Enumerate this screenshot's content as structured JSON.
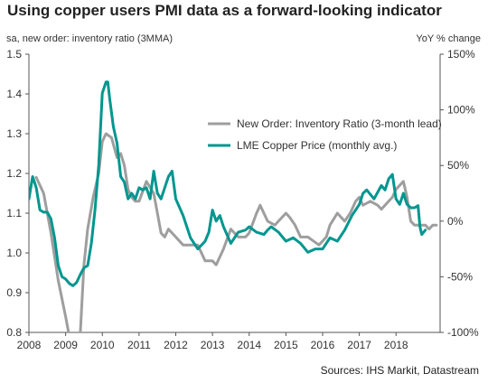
{
  "chart_data": {
    "type": "line",
    "title": "Using copper users PMI data as a forward-looking indicator",
    "y_left_label": "sa, new order: inventory ratio (3MMA)",
    "y_right_label": "YoY % change",
    "source": "Sources: IHS Markit, Datastream",
    "x_ticks": [
      "2008",
      "2009",
      "2010",
      "2011",
      "2012",
      "2013",
      "2014",
      "2015",
      "2016",
      "2017",
      "2018"
    ],
    "xlim": [
      2008.0,
      2019.2
    ],
    "y_left_ticks": [
      "0.8",
      "0.9",
      "1.0",
      "1.1",
      "1.2",
      "1.3",
      "1.4",
      "1.5"
    ],
    "ylim_left": [
      0.8,
      1.5
    ],
    "y_right_ticks": [
      "-100%",
      "-50%",
      "0%",
      "50%",
      "100%",
      "150%"
    ],
    "ylim_right": [
      -100,
      150
    ],
    "grid": false,
    "legend_position": "top-right",
    "series": [
      {
        "name": "New Order: Inventory Ratio (3-month lead)",
        "axis": "left",
        "color": "#9e9e9e",
        "x": [
          2008.2,
          2008.4,
          2008.6,
          2008.8,
          2009.0,
          2009.1,
          2009.25,
          2009.4,
          2009.5,
          2009.6,
          2009.75,
          2009.9,
          2010.0,
          2010.1,
          2010.25,
          2010.4,
          2010.5,
          2010.6,
          2010.7,
          2010.8,
          2010.9,
          2011.0,
          2011.2,
          2011.4,
          2011.5,
          2011.6,
          2011.7,
          2011.8,
          2012.0,
          2012.2,
          2012.4,
          2012.6,
          2012.7,
          2012.8,
          2012.9,
          2013.0,
          2013.1,
          2013.3,
          2013.5,
          2013.7,
          2013.9,
          2014.0,
          2014.2,
          2014.3,
          2014.5,
          2014.7,
          2014.8,
          2014.9,
          2015.0,
          2015.1,
          2015.25,
          2015.4,
          2015.6,
          2015.75,
          2015.9,
          2016.0,
          2016.1,
          2016.2,
          2016.4,
          2016.5,
          2016.6,
          2016.75,
          2016.9,
          2017.0,
          2017.1,
          2017.3,
          2017.5,
          2017.6,
          2017.7,
          2017.8,
          2017.9,
          2018.0,
          2018.1,
          2018.2,
          2018.3,
          2018.4,
          2018.5,
          2018.6,
          2018.7,
          2018.8,
          2018.9,
          2019.0,
          2019.1
        ],
        "values": [
          1.19,
          1.15,
          1.05,
          0.93,
          0.84,
          0.79,
          0.72,
          0.8,
          0.97,
          1.06,
          1.14,
          1.2,
          1.28,
          1.3,
          1.29,
          1.24,
          1.25,
          1.22,
          1.16,
          1.14,
          1.13,
          1.13,
          1.18,
          1.15,
          1.1,
          1.05,
          1.04,
          1.06,
          1.04,
          1.02,
          1.02,
          1.02,
          1.0,
          0.98,
          0.98,
          0.98,
          0.97,
          1.01,
          1.06,
          1.04,
          1.04,
          1.05,
          1.1,
          1.12,
          1.08,
          1.07,
          1.08,
          1.09,
          1.1,
          1.09,
          1.07,
          1.04,
          1.04,
          1.03,
          1.02,
          1.03,
          1.04,
          1.07,
          1.1,
          1.09,
          1.08,
          1.1,
          1.13,
          1.14,
          1.12,
          1.13,
          1.12,
          1.11,
          1.12,
          1.13,
          1.14,
          1.16,
          1.17,
          1.18,
          1.14,
          1.08,
          1.07,
          1.07,
          1.07,
          1.07,
          1.06,
          1.07,
          1.07
        ]
      },
      {
        "name": "LME Copper Price (monthly avg.)",
        "axis": "right",
        "color": "#00968f",
        "x": [
          2008.0,
          2008.1,
          2008.2,
          2008.3,
          2008.4,
          2008.5,
          2008.6,
          2008.7,
          2008.8,
          2008.9,
          2009.0,
          2009.1,
          2009.2,
          2009.3,
          2009.4,
          2009.5,
          2009.6,
          2009.7,
          2009.8,
          2009.9,
          2010.0,
          2010.1,
          2010.15,
          2010.2,
          2010.3,
          2010.4,
          2010.5,
          2010.6,
          2010.7,
          2010.8,
          2010.9,
          2011.0,
          2011.1,
          2011.2,
          2011.3,
          2011.4,
          2011.5,
          2011.6,
          2011.7,
          2011.8,
          2011.9,
          2012.0,
          2012.2,
          2012.4,
          2012.6,
          2012.8,
          2012.9,
          2013.0,
          2013.1,
          2013.2,
          2013.3,
          2013.5,
          2013.7,
          2013.9,
          2014.0,
          2014.2,
          2014.4,
          2014.5,
          2014.6,
          2014.8,
          2015.0,
          2015.2,
          2015.4,
          2015.6,
          2015.8,
          2016.0,
          2016.2,
          2016.4,
          2016.6,
          2016.8,
          2017.0,
          2017.1,
          2017.2,
          2017.4,
          2017.6,
          2017.7,
          2017.8,
          2017.9,
          2018.0,
          2018.1,
          2018.2,
          2018.3,
          2018.4,
          2018.5,
          2018.6,
          2018.65,
          2018.7,
          2018.8
        ],
        "values": [
          20,
          40,
          30,
          10,
          8,
          8,
          2,
          -15,
          -40,
          -50,
          -52,
          -56,
          -58,
          -55,
          -48,
          -42,
          -40,
          -20,
          10,
          50,
          115,
          125,
          125,
          110,
          85,
          70,
          40,
          35,
          20,
          25,
          20,
          30,
          28,
          30,
          20,
          45,
          25,
          20,
          30,
          40,
          45,
          20,
          5,
          -15,
          -25,
          -18,
          -10,
          10,
          0,
          5,
          -5,
          -20,
          -10,
          -8,
          -5,
          -10,
          -12,
          -8,
          -5,
          -10,
          -18,
          -15,
          -20,
          -28,
          -25,
          -25,
          -15,
          -18,
          -8,
          5,
          15,
          25,
          28,
          20,
          32,
          28,
          38,
          42,
          20,
          15,
          25,
          15,
          12,
          12,
          14,
          -5,
          -12,
          -8
        ]
      }
    ]
  }
}
